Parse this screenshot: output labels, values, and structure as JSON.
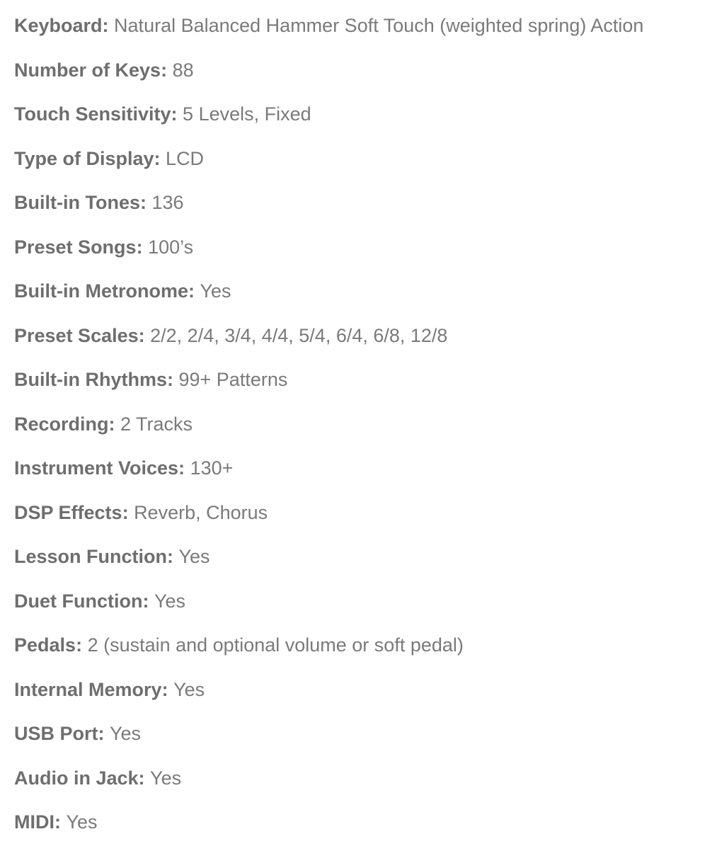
{
  "specs": [
    {
      "label": "Keyboard",
      "value": "Natural Balanced Hammer Soft Touch (weighted spring) Action"
    },
    {
      "label": "Number of Keys",
      "value": "88"
    },
    {
      "label": "Touch Sensitivity",
      "value": "5 Levels, Fixed"
    },
    {
      "label": "Type of Display",
      "value": "LCD"
    },
    {
      "label": "Built-in Tones",
      "value": "136"
    },
    {
      "label": "Preset Songs",
      "value": "100’s"
    },
    {
      "label": "Built-in Metronome",
      "value": "Yes"
    },
    {
      "label": "Preset Scales",
      "value": "2/2, 2/4, 3/4, 4/4, 5/4, 6/4, 6/8, 12/8"
    },
    {
      "label": "Built-in Rhythms",
      "value": "99+ Patterns"
    },
    {
      "label": "Recording",
      "value": "2 Tracks"
    },
    {
      "label": "Instrument Voices",
      "value": "130+"
    },
    {
      "label": "DSP Effects",
      "value": "Reverb, Chorus"
    },
    {
      "label": "Lesson Function",
      "value": "Yes"
    },
    {
      "label": "Duet Function",
      "value": "Yes"
    },
    {
      "label": "Pedals",
      "value": "2 (sustain and optional volume or soft pedal)"
    },
    {
      "label": "Internal Memory",
      "value": "Yes"
    },
    {
      "label": "USB Port",
      "value": "Yes"
    },
    {
      "label": "Audio in Jack",
      "value": "Yes"
    },
    {
      "label": "MIDI",
      "value": "Yes"
    }
  ],
  "colors": {
    "text": "#737373",
    "background": "#ffffff"
  }
}
